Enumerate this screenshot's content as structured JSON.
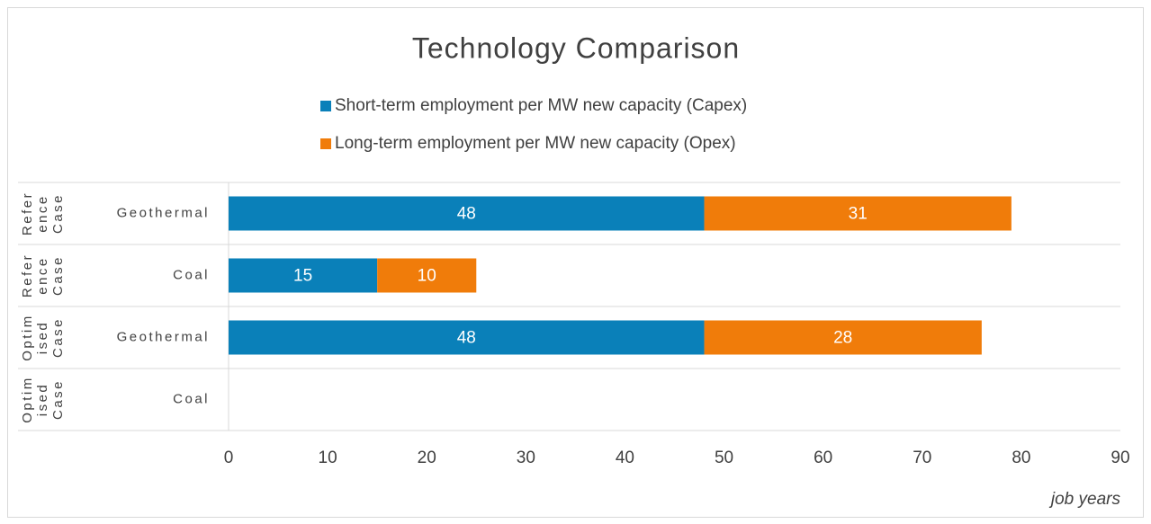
{
  "chart_data": {
    "type": "bar",
    "orientation": "horizontal",
    "stacked": true,
    "title": "Technology Comparison",
    "categories": [
      "Geothermal",
      "Coal",
      "Geothermal",
      "Coal"
    ],
    "groups": [
      "Reference Case",
      "Reference Case",
      "Optimised Case",
      "Optimised Case"
    ],
    "series": [
      {
        "name": "Short-term employment per MW new capacity (Capex)",
        "color": "#0a80b9",
        "values": [
          48,
          15,
          48,
          null
        ]
      },
      {
        "name": "Long-term employment per MW new capacity (Opex)",
        "color": "#f07c0a",
        "values": [
          31,
          10,
          28,
          null
        ]
      }
    ],
    "xlim": [
      0,
      90
    ],
    "xticks": [
      0,
      10,
      20,
      30,
      40,
      50,
      60,
      70,
      80,
      90
    ],
    "x_label": "job years",
    "legend": "top"
  }
}
